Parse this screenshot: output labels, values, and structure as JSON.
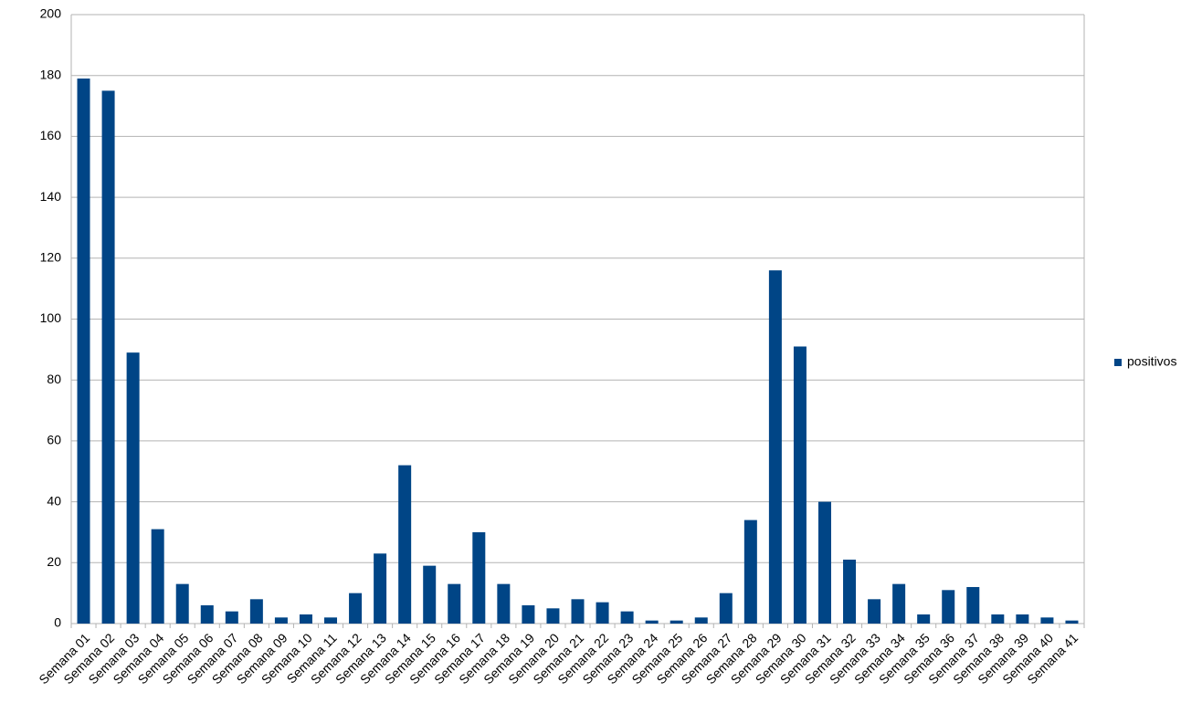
{
  "chart_data": {
    "type": "bar",
    "categories": [
      "Semana 01",
      "Semana 02",
      "Semana 03",
      "Semana 04",
      "Semana 05",
      "Semana 06",
      "Semana 07",
      "Semana 08",
      "Semana 09",
      "Semana 10",
      "Semana 11",
      "Semana 12",
      "Semana 13",
      "Semana 14",
      "Semana 15",
      "Semana 16",
      "Semana 17",
      "Semana 18",
      "Semana 19",
      "Semana 20",
      "Semana 21",
      "Semana 22",
      "Semana 23",
      "Semana 24",
      "Semana 25",
      "Semana 26",
      "Semana 27",
      "Semana 28",
      "Semana 29",
      "Semana 30",
      "Semana 31",
      "Semana 32",
      "Semana 33",
      "Semana 34",
      "Semana 35",
      "Semana 36",
      "Semana 37",
      "Semana 38",
      "Semana 39",
      "Semana 40",
      "Semana 41"
    ],
    "series": [
      {
        "name": "positivos",
        "color": "#004586",
        "values": [
          179,
          175,
          89,
          31,
          13,
          6,
          4,
          8,
          2,
          3,
          2,
          10,
          23,
          52,
          19,
          13,
          30,
          13,
          6,
          5,
          8,
          7,
          4,
          1,
          1,
          2,
          10,
          34,
          116,
          91,
          40,
          21,
          8,
          13,
          3,
          11,
          12,
          3,
          3,
          2,
          1
        ]
      }
    ],
    "ylim": [
      0,
      200
    ],
    "yticks": [
      0,
      20,
      40,
      60,
      80,
      100,
      120,
      140,
      160,
      180,
      200
    ],
    "grid": true,
    "legend": "right"
  }
}
